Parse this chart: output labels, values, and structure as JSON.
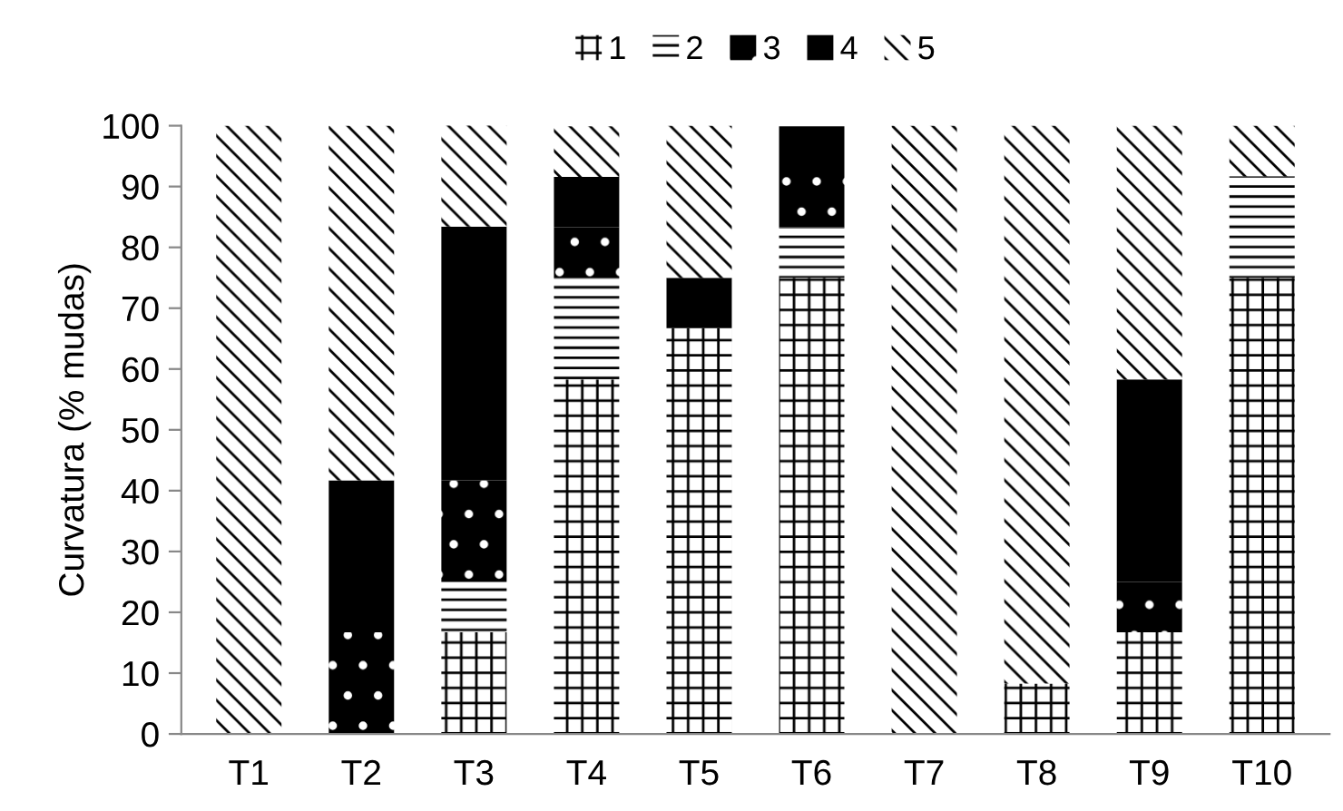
{
  "chart_data": {
    "type": "bar",
    "stacked": true,
    "ylabel": "Curvatura (% mudas)",
    "categories": [
      "T1",
      "T2",
      "T3",
      "T4",
      "T5",
      "T6",
      "T7",
      "T8",
      "T9",
      "T10"
    ],
    "series": [
      {
        "name": "1",
        "color": "#ffffff",
        "values": [
          null,
          null,
          16.7,
          58.3,
          66.7,
          75,
          null,
          8.3,
          16.7,
          75
        ]
      },
      {
        "name": "2",
        "color": "#ffffff",
        "values": [
          null,
          null,
          8.3,
          16.7,
          null,
          8.3,
          null,
          null,
          null,
          16.7
        ]
      },
      {
        "name": "3",
        "color": "#000000",
        "values": [
          null,
          16.7,
          16.7,
          8.3,
          null,
          8.3,
          null,
          null,
          8.3,
          null
        ]
      },
      {
        "name": "4",
        "color": "#000000",
        "values": [
          null,
          25,
          41.7,
          8.3,
          8.3,
          8.3,
          null,
          null,
          33.3,
          null
        ]
      },
      {
        "name": "5",
        "color": "#ffffff",
        "values": [
          100,
          58.3,
          16.7,
          8.3,
          25,
          null,
          100,
          91.7,
          41.7,
          8.3
        ]
      }
    ],
    "ylim": [
      0,
      100
    ],
    "yticks": [
      0,
      10,
      20,
      30,
      40,
      50,
      60,
      70,
      80,
      90,
      100
    ],
    "grid": false,
    "legend": "top"
  }
}
